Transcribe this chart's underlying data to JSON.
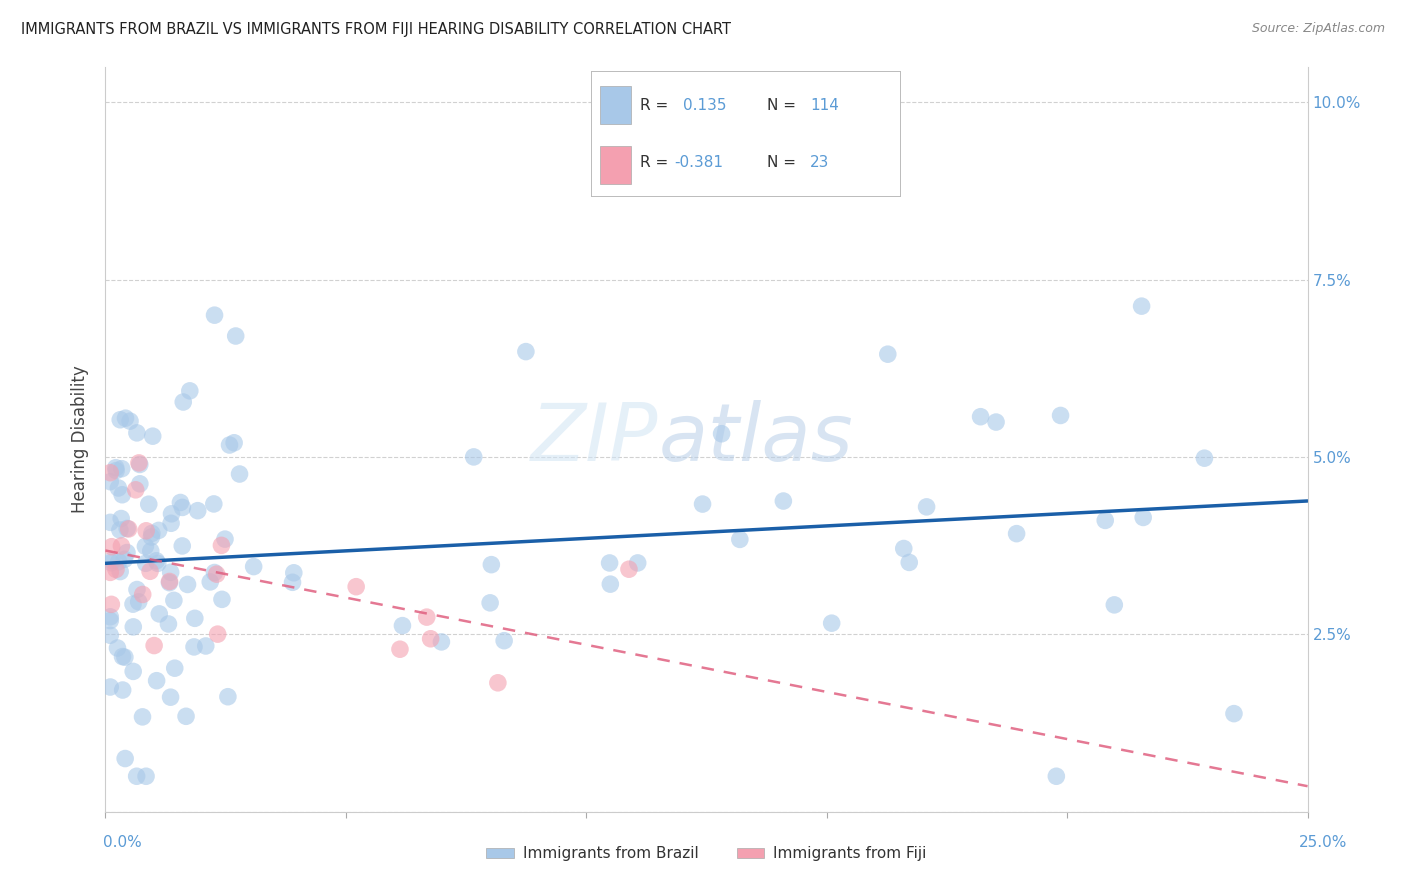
{
  "title": "IMMIGRANTS FROM BRAZIL VS IMMIGRANTS FROM FIJI HEARING DISABILITY CORRELATION CHART",
  "source": "Source: ZipAtlas.com",
  "ylabel": "Hearing Disability",
  "xlim": [
    0.0,
    0.25
  ],
  "ylim": [
    0.0,
    0.105
  ],
  "brazil_R": 0.135,
  "brazil_N": 114,
  "fiji_R": -0.381,
  "fiji_N": 23,
  "brazil_color": "#a8c8e8",
  "fiji_color": "#f4a0b0",
  "brazil_line_color": "#1a5fa8",
  "fiji_line_color": "#e06080",
  "background_color": "#ffffff",
  "grid_color": "#cccccc",
  "watermark_zip": "ZIP",
  "watermark_atlas": "atlas",
  "tick_color": "#5b9bd5",
  "legend_box_color": "#dddddd"
}
